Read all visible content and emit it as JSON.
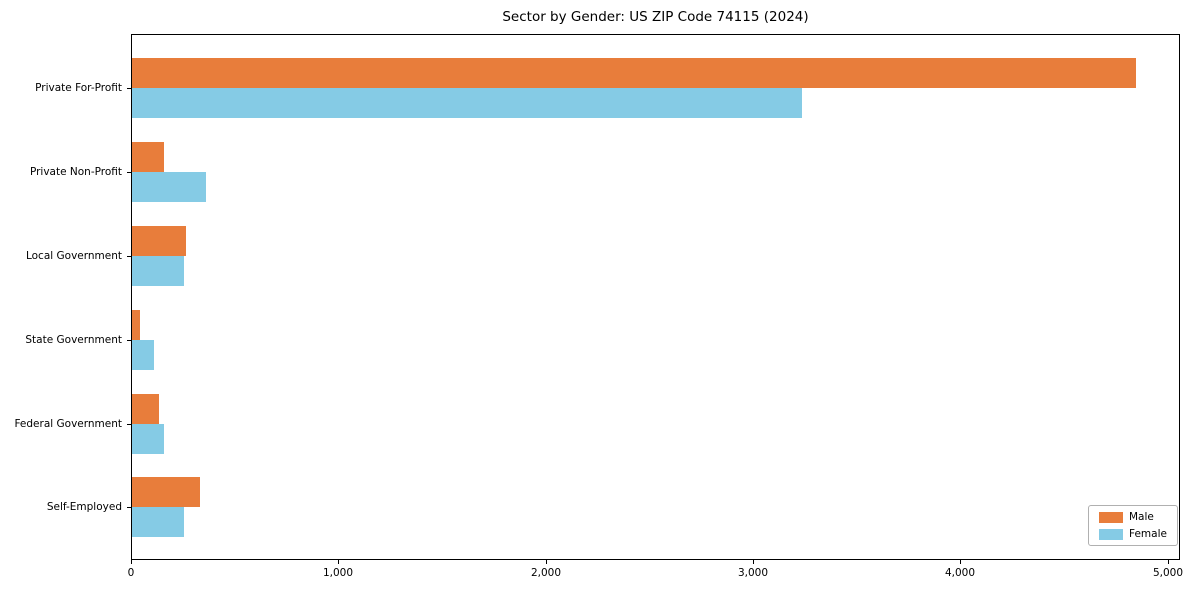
{
  "chart_data": {
    "type": "bar",
    "orientation": "horizontal",
    "title": "Sector by Gender: US ZIP Code 74115 (2024)",
    "categories": [
      "Private For-Profit",
      "Private Non-Profit",
      "Local Government",
      "State Government",
      "Federal Government",
      "Self-Employed"
    ],
    "series": [
      {
        "name": "Male",
        "color": "#E87D3B",
        "values": [
          4845,
          155,
          260,
          40,
          130,
          330
        ]
      },
      {
        "name": "Female",
        "color": "#85CBE5",
        "values": [
          3230,
          355,
          250,
          105,
          155,
          250
        ]
      }
    ],
    "xlabel": "",
    "ylabel": "",
    "xlim": [
      0,
      5060
    ],
    "x_ticks": [
      0,
      1000,
      2000,
      3000,
      4000,
      5000
    ],
    "x_tick_labels": [
      "0",
      "1,000",
      "2,000",
      "3,000",
      "4,000",
      "5,000"
    ],
    "grid": false,
    "legend": {
      "position": "lower right",
      "labels": [
        "Male",
        "Female"
      ]
    }
  },
  "colors": {
    "male_bar": "#E87D3B",
    "female_bar": "#85CBE5",
    "spine": "#000000",
    "text": "#000000",
    "legend_border": "#b0b0b0",
    "background": "#ffffff"
  }
}
